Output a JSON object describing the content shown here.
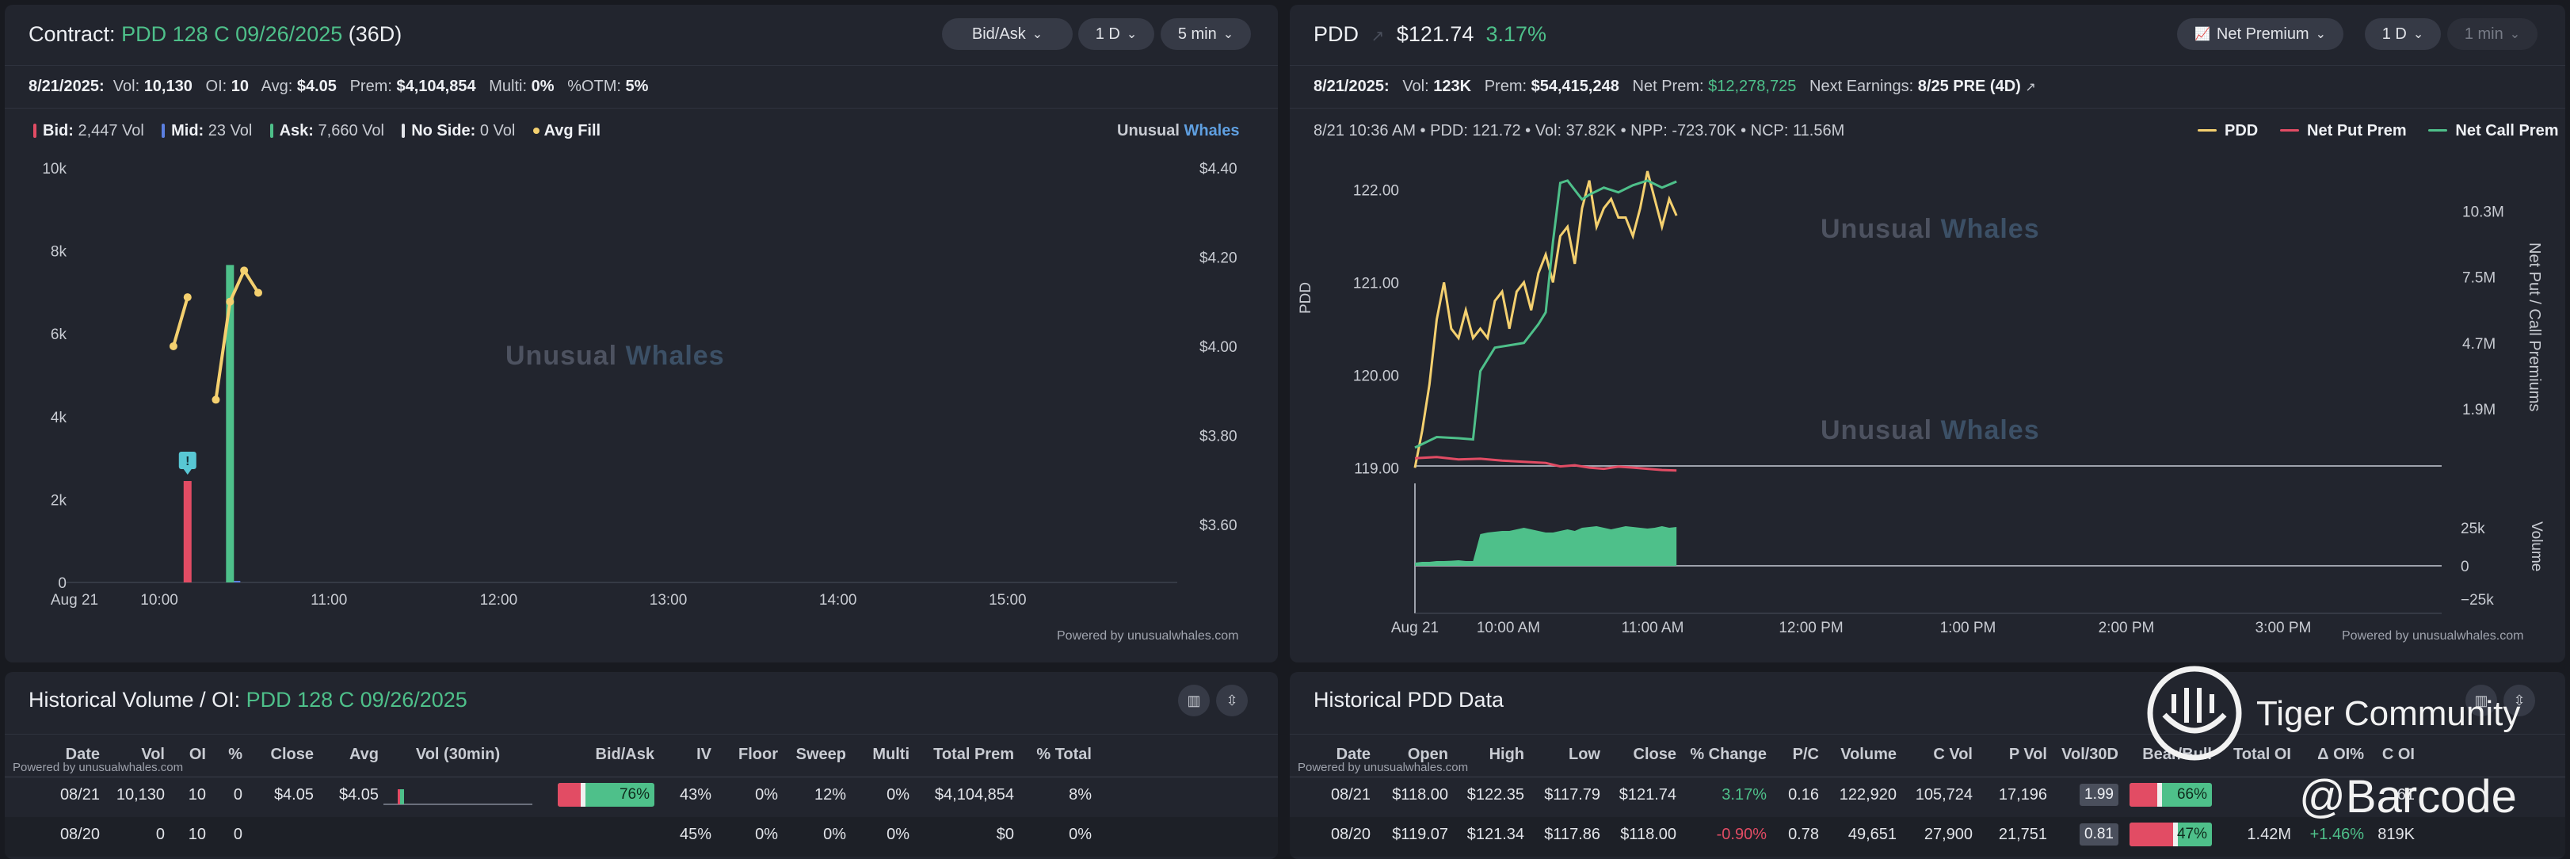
{
  "contract_panel": {
    "title_prefix": "Contract:",
    "contract": "PDD 128 C 09/26/2025",
    "days": "(36D)",
    "controls": {
      "mode": "Bid/Ask",
      "range": "1 D",
      "interval": "5 min"
    },
    "stats": {
      "date": "8/21/2025:",
      "vol_label": "Vol:",
      "vol": "10,130",
      "oi_label": "OI:",
      "oi": "10",
      "avg_label": "Avg:",
      "avg": "$4.05",
      "prem_label": "Prem:",
      "prem": "$4,104,854",
      "multi_label": "Multi:",
      "multi": "0%",
      "otm_label": "%OTM:",
      "otm": "5%"
    },
    "legend": {
      "bid_label": "Bid:",
      "bid": "2,447 Vol",
      "mid_label": "Mid:",
      "mid": "23 Vol",
      "ask_label": "Ask:",
      "ask": "7,660 Vol",
      "noside_label": "No Side:",
      "noside": "0 Vol",
      "avgfill_label": "Avg Fill"
    },
    "brand": {
      "a": "Unusual",
      "b": "Whales"
    },
    "watermark": {
      "a": "Unusual",
      "b": "Whales"
    },
    "powered": "Powered by unusualwhales.com",
    "marker_label": "!"
  },
  "pdd_panel": {
    "ticker": "PDD",
    "price": "$121.74",
    "change": "3.17%",
    "controls": {
      "mode": "Net Premium",
      "range": "1 D",
      "interval": "1 min"
    },
    "stats": {
      "date": "8/21/2025:",
      "vol_label": "Vol:",
      "vol": "123K",
      "prem_label": "Prem:",
      "prem": "$54,415,248",
      "netprem_label": "Net Prem:",
      "netprem": "$12,278,725",
      "earn_label": "Next Earnings:",
      "earn": "8/25 PRE (4D)"
    },
    "readout": "8/21 10:36 AM • PDD: 121.72 • Vol: 37.82K • NPP: -723.70K • NCP: 11.56M",
    "legend": {
      "pdd": "PDD",
      "put": "Net Put Prem",
      "call": "Net Call Prem"
    },
    "watermark": {
      "a": "Unusual",
      "b": "Whales"
    },
    "powered": "Powered by unusualwhales.com",
    "y_left_label": "PDD",
    "y_right_label": "Net Put / Call Premiums",
    "volume_label": "Volume"
  },
  "chart_data": [
    {
      "type": "bar",
      "title": "Contract: PDD 128 C 09/26/2025 (36D)",
      "x_ticks": [
        "Aug 21",
        "10:00",
        "11:00",
        "12:00",
        "13:00",
        "14:00",
        "15:00"
      ],
      "y_left_ticks": [
        "10k",
        "8k",
        "6k",
        "4k",
        "2k",
        "0"
      ],
      "y_right_ticks": [
        "$4.40",
        "$4.20",
        "$4.00",
        "$3.80",
        "$3.60"
      ],
      "ylim_left": [
        0,
        10000
      ],
      "ylim_right": [
        3.47,
        4.4
      ],
      "series": [
        {
          "name": "Bid",
          "color": "#e24c64",
          "x": [
            "10:10"
          ],
          "values": [
            2447
          ]
        },
        {
          "name": "Mid",
          "color": "#5b7fe0",
          "x": [
            "10:25"
          ],
          "values": [
            23
          ]
        },
        {
          "name": "Ask",
          "color": "#4ec08a",
          "x": [
            "10:25"
          ],
          "values": [
            7660
          ]
        },
        {
          "name": "No Side",
          "color": "#e2e4e9",
          "x": [],
          "values": []
        },
        {
          "name": "Avg Fill",
          "color": "#f4d06f",
          "points": [
            {
              "x": "10:05",
              "y": 4.0
            },
            {
              "x": "10:10",
              "y": 4.11
            },
            {
              "x": "10:20",
              "y": 3.88
            },
            {
              "x": "10:25",
              "y": 4.1
            },
            {
              "x": "10:30",
              "y": 4.17
            },
            {
              "x": "10:35",
              "y": 4.12
            }
          ]
        }
      ]
    },
    {
      "type": "line",
      "x_ticks": [
        "Aug 21",
        "10:00 AM",
        "11:00 AM",
        "12:00 PM",
        "1:00 PM",
        "2:00 PM",
        "3:00 PM"
      ],
      "y_left_ticks": [
        "122.00",
        "121.00",
        "120.00",
        "119.00"
      ],
      "y_right_ticks": [
        "10.3M",
        "7.5M",
        "4.7M",
        "1.9M"
      ],
      "volume_ticks": [
        "25k",
        "0",
        "−25k"
      ],
      "ylim_left": [
        118.9,
        122.2
      ],
      "ylim_right": [
        -1000000,
        12000000
      ],
      "series": [
        {
          "name": "PDD",
          "color": "#f4d06f",
          "points": [
            [
              0,
              119.0
            ],
            [
              1,
              119.4
            ],
            [
              2,
              119.9
            ],
            [
              3,
              120.6
            ],
            [
              4,
              121.0
            ],
            [
              5,
              120.5
            ],
            [
              6,
              120.4
            ],
            [
              7,
              120.7
            ],
            [
              8,
              120.4
            ],
            [
              9,
              120.5
            ],
            [
              10,
              120.4
            ],
            [
              11,
              120.8
            ],
            [
              12,
              120.9
            ],
            [
              13,
              120.5
            ],
            [
              14,
              120.9
            ],
            [
              15,
              121.0
            ],
            [
              16,
              120.7
            ],
            [
              17,
              121.1
            ],
            [
              18,
              121.3
            ],
            [
              19,
              121.0
            ],
            [
              20,
              121.5
            ],
            [
              21,
              121.6
            ],
            [
              22,
              121.2
            ],
            [
              23,
              121.8
            ],
            [
              24,
              122.1
            ],
            [
              25,
              121.6
            ],
            [
              26,
              121.8
            ],
            [
              27,
              121.9
            ],
            [
              28,
              121.7
            ],
            [
              29,
              121.7
            ],
            [
              30,
              121.5
            ],
            [
              31,
              121.8
            ],
            [
              32,
              122.2
            ],
            [
              33,
              121.9
            ],
            [
              34,
              121.6
            ],
            [
              35,
              121.9
            ],
            [
              36,
              121.72
            ]
          ]
        },
        {
          "name": "Net Put Prem",
          "color": "#e24c64",
          "points": [
            [
              0,
              -200000
            ],
            [
              3,
              -150000
            ],
            [
              6,
              -250000
            ],
            [
              9,
              -220000
            ],
            [
              12,
              -300000
            ],
            [
              15,
              -350000
            ],
            [
              18,
              -400000
            ],
            [
              20,
              -550000
            ],
            [
              22,
              -500000
            ],
            [
              24,
              -600000
            ],
            [
              26,
              -650000
            ],
            [
              28,
              -560000
            ],
            [
              30,
              -600000
            ],
            [
              32,
              -650000
            ],
            [
              34,
              -700000
            ],
            [
              36,
              -723700
            ]
          ]
        },
        {
          "name": "Net Call Prem",
          "color": "#4ec08a",
          "points": [
            [
              0,
              250000
            ],
            [
              3,
              700000
            ],
            [
              6,
              650000
            ],
            [
              8,
              600000
            ],
            [
              9,
              3500000
            ],
            [
              11,
              4500000
            ],
            [
              13,
              4600000
            ],
            [
              15,
              4700000
            ],
            [
              17,
              5500000
            ],
            [
              18,
              6000000
            ],
            [
              19,
              9000000
            ],
            [
              20,
              11500000
            ],
            [
              21,
              11600000
            ],
            [
              22,
              11200000
            ],
            [
              23,
              10800000
            ],
            [
              24,
              11000000
            ],
            [
              26,
              11300000
            ],
            [
              28,
              11100000
            ],
            [
              30,
              11400000
            ],
            [
              32,
              11600000
            ],
            [
              34,
              11300000
            ],
            [
              36,
              11560000
            ]
          ]
        }
      ],
      "volume": {
        "color": "#4ec08a",
        "values": [
          2000,
          2500,
          2500,
          3000,
          3000,
          3200,
          3500,
          3000,
          3000,
          20000,
          21000,
          21500,
          22000,
          22000,
          23000,
          24000,
          23000,
          22000,
          21000,
          21000,
          22000,
          23000,
          22000,
          24000,
          24500,
          25000,
          24000,
          23000,
          24000,
          25000,
          24500,
          24000,
          23500,
          24000,
          25000,
          24000,
          24500
        ]
      }
    }
  ],
  "hist_panel": {
    "title_prefix": "Historical Volume / OI:",
    "contract": "PDD 128 C 09/26/2025",
    "powered": "Powered by unusualwhales.com",
    "columns": [
      "Date",
      "Vol",
      "OI",
      "%",
      "Close",
      "Avg",
      "Vol (30min)",
      "Bid/Ask",
      "IV",
      "Floor",
      "Sweep",
      "Multi",
      "Total Prem",
      "% Total"
    ],
    "rows": [
      {
        "date": "08/21",
        "vol": "10,130",
        "oi": "10",
        "pct": "0",
        "close": "$4.05",
        "avg": "$4.05",
        "bidask": "76%",
        "bidask_value": 0.76,
        "iv": "43%",
        "floor": "0%",
        "sweep": "12%",
        "multi": "0%",
        "total_prem": "$4,104,854",
        "pct_total": "8%"
      },
      {
        "date": "08/20",
        "vol": "0",
        "oi": "10",
        "pct": "0",
        "close": "",
        "avg": "",
        "bidask": "",
        "bidask_value": null,
        "iv": "45%",
        "floor": "0%",
        "sweep": "0%",
        "multi": "0%",
        "total_prem": "$0",
        "pct_total": "0%"
      }
    ]
  },
  "hpdd_panel": {
    "title": "Historical PDD Data",
    "powered": "Powered by unusualwhales.com",
    "columns": [
      "Date",
      "Open",
      "High",
      "Low",
      "Close",
      "% Change",
      "P/C",
      "Volume",
      "C Vol",
      "P Vol",
      "Vol/30D",
      "Bear/Bull",
      "Total OI",
      "Δ OI%",
      "C OI"
    ],
    "rows": [
      {
        "date": "08/21",
        "open": "$118.00",
        "high": "$122.35",
        "low": "$117.79",
        "close": "$121.74",
        "change": "3.17%",
        "pc": "0.16",
        "volume": "122,920",
        "cvol": "105,724",
        "pvol": "17,196",
        "vol30": "1.99",
        "bearbull": "66%",
        "bearbull_value": 0.66,
        "total_oi": "",
        "doi": "",
        "coi": "61"
      },
      {
        "date": "08/20",
        "open": "$119.07",
        "high": "$121.34",
        "low": "$117.86",
        "close": "$118.00",
        "change": "-0.90%",
        "pc": "0.78",
        "volume": "49,651",
        "cvol": "27,900",
        "pvol": "21,751",
        "vol30": "0.81",
        "bearbull": "47%",
        "bearbull_value": 0.47,
        "total_oi": "1.42M",
        "doi": "+1.46%",
        "coi": "819K"
      }
    ]
  },
  "overlay": {
    "community": "Tiger Community",
    "handle": "@Barcode"
  }
}
